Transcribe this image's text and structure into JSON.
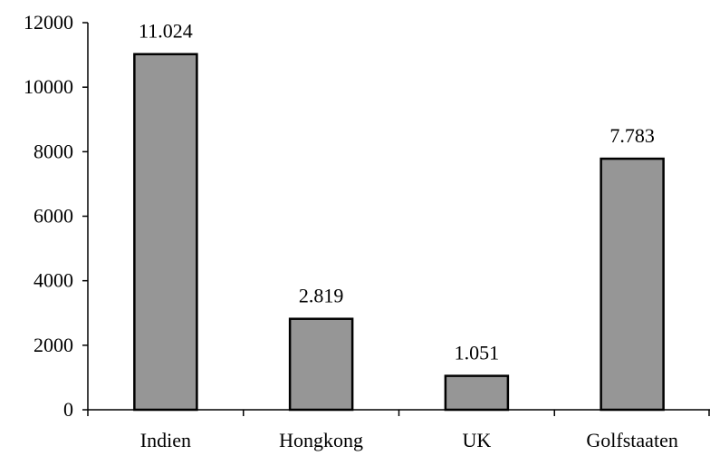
{
  "chart_data": {
    "type": "bar",
    "categories": [
      "Indien",
      "Hongkong",
      "UK",
      "Golfstaaten"
    ],
    "values": [
      11024,
      2819,
      1051,
      7783
    ],
    "data_labels": [
      "11.024",
      "2.819",
      "1.051",
      "7.783"
    ],
    "y_ticks": [
      0,
      2000,
      4000,
      6000,
      8000,
      10000,
      12000
    ],
    "ylim": [
      0,
      12000
    ],
    "title": "",
    "xlabel": "",
    "ylabel": "",
    "grid": false,
    "legend": "none",
    "bar_color": "#969696",
    "bar_outline_color": "#000000"
  }
}
